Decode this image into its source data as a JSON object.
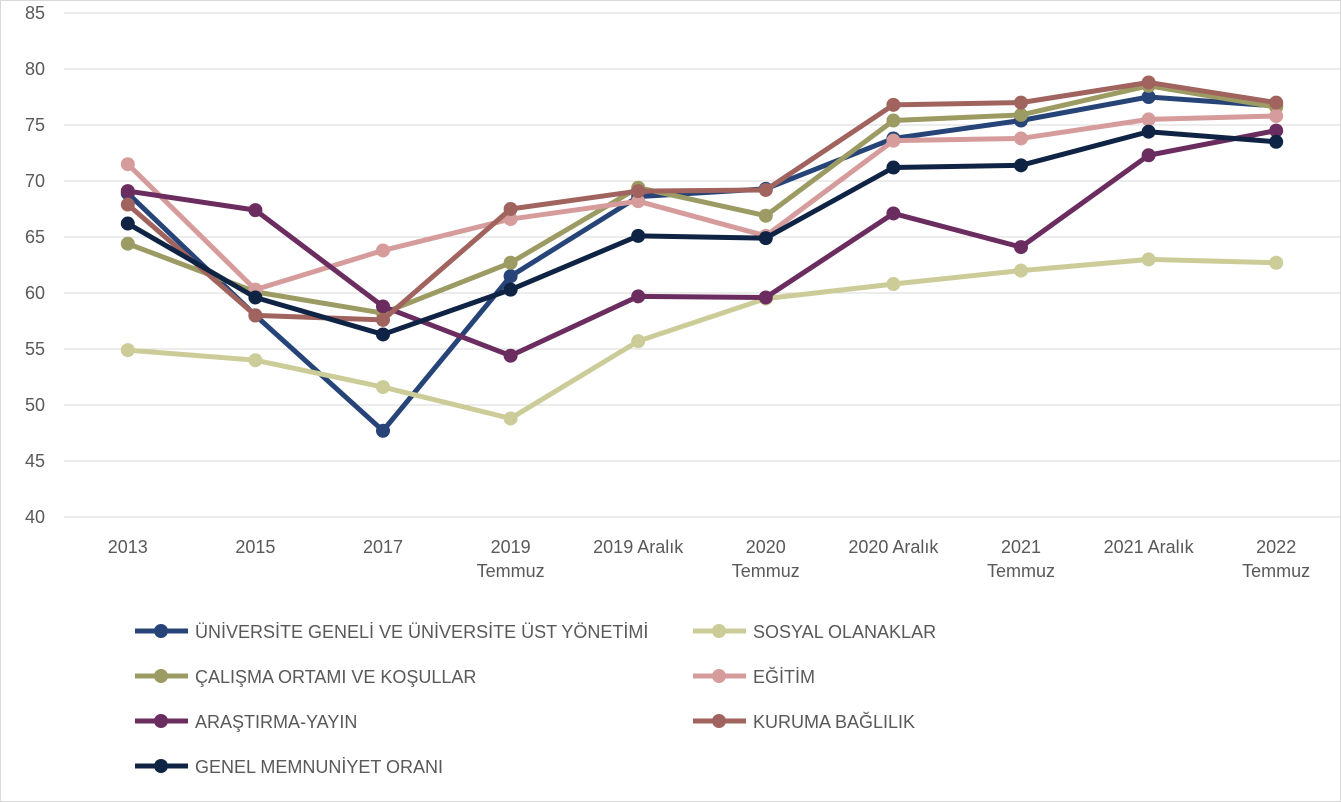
{
  "chart_data": {
    "type": "line",
    "categories": [
      "2013",
      "2015",
      "2017",
      "2019\nTemmuz",
      "2019 Aralık",
      "2020\nTemmuz",
      "2020 Aralık",
      "2021\nTemmuz",
      "2021 Aralık",
      "2022\nTemmuz"
    ],
    "series": [
      {
        "name": "ÜNİVERSİTE GENELİ VE ÜNİVERSİTE ÜST YÖNETİMİ",
        "color": "#264478",
        "values": [
          68.9,
          58.0,
          47.7,
          61.5,
          68.6,
          69.3,
          73.8,
          75.4,
          77.5,
          76.7
        ]
      },
      {
        "name": "SOSYAL OLANAKLAR",
        "color": "#cccc99",
        "values": [
          54.9,
          54.0,
          51.6,
          48.8,
          55.7,
          59.5,
          60.8,
          62.0,
          63.0,
          62.7
        ]
      },
      {
        "name": "ÇALIŞMA ORTAMI VE KOŞULLAR",
        "color": "#9b9b63",
        "values": [
          64.4,
          60.1,
          58.2,
          62.7,
          69.4,
          66.9,
          75.4,
          75.9,
          78.5,
          76.6
        ]
      },
      {
        "name": "EĞİTİM",
        "color": "#d69c9c",
        "values": [
          71.5,
          60.3,
          63.8,
          66.6,
          68.2,
          65.1,
          73.6,
          73.8,
          75.5,
          75.8
        ]
      },
      {
        "name": "ARAŞTIRMA-YAYIN",
        "color": "#6b2d5f",
        "values": [
          69.1,
          67.4,
          58.8,
          54.4,
          59.7,
          59.6,
          67.1,
          64.1,
          72.3,
          74.5
        ]
      },
      {
        "name": "KURUMA BAĞLILIK",
        "color": "#a0635e",
        "values": [
          67.9,
          58.0,
          57.6,
          67.5,
          69.1,
          69.2,
          76.8,
          77.0,
          78.8,
          77.0
        ]
      },
      {
        "name": "GENEL MEMNUNİYET ORANI",
        "color": "#0f2444",
        "values": [
          66.2,
          59.6,
          56.3,
          60.3,
          65.1,
          64.9,
          71.2,
          71.4,
          74.4,
          73.5
        ]
      }
    ],
    "ylim": [
      40,
      85
    ],
    "yticks": [
      40,
      45,
      50,
      55,
      60,
      65,
      70,
      75,
      80,
      85
    ],
    "grid": true
  }
}
